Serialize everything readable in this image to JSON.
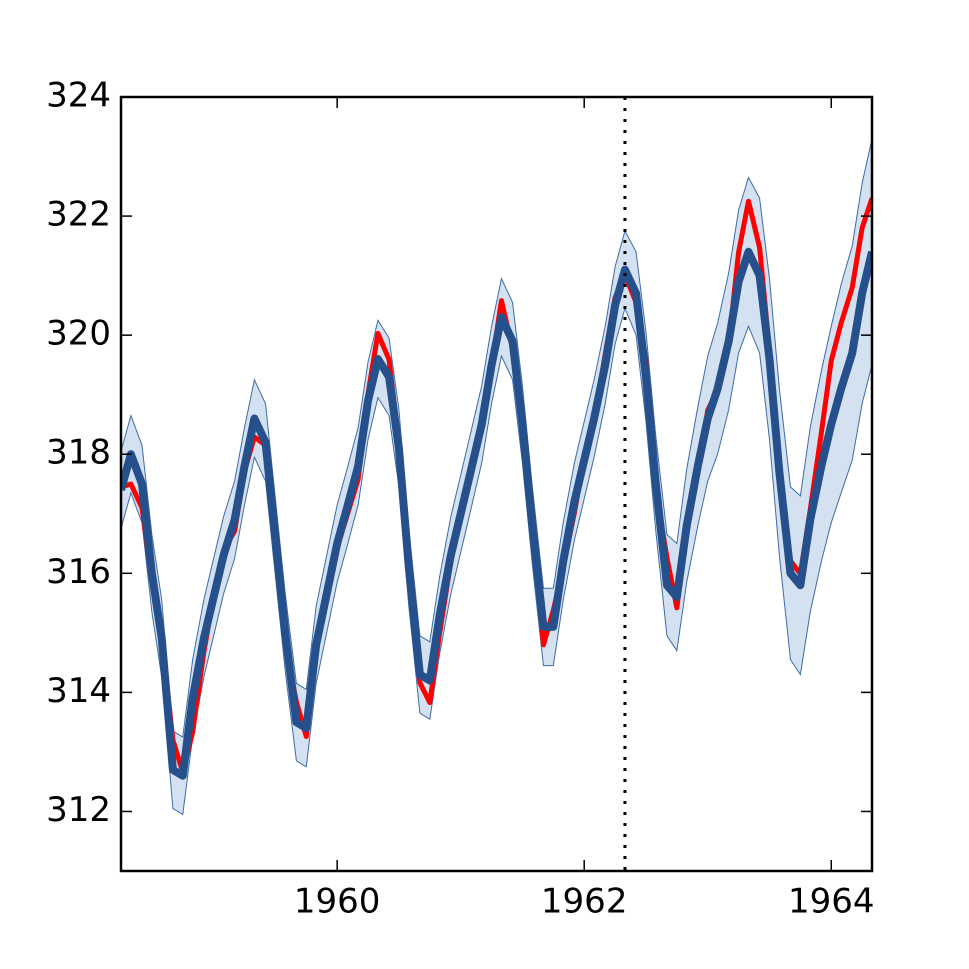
{
  "chart_data": {
    "type": "line",
    "x": [
      1958.25,
      1958.33,
      1958.42,
      1958.5,
      1958.58,
      1958.67,
      1958.75,
      1958.83,
      1958.92,
      1959,
      1959.08,
      1959.17,
      1959.25,
      1959.33,
      1959.42,
      1959.5,
      1959.58,
      1959.67,
      1959.75,
      1959.83,
      1959.92,
      1960,
      1960.08,
      1960.17,
      1960.25,
      1960.33,
      1960.42,
      1960.5,
      1960.58,
      1960.67,
      1960.75,
      1960.83,
      1960.92,
      1961,
      1961.08,
      1961.17,
      1961.25,
      1961.33,
      1961.42,
      1961.5,
      1961.58,
      1961.67,
      1961.75,
      1961.83,
      1961.92,
      1962,
      1962.08,
      1962.17,
      1962.25,
      1962.33,
      1962.42,
      1962.5,
      1962.58,
      1962.67,
      1962.75,
      1962.83,
      1962.92,
      1963,
      1963.08,
      1963.17,
      1963.25,
      1963.33,
      1963.42,
      1963.5,
      1963.58,
      1963.67,
      1963.75,
      1963.83,
      1963.92,
      1964,
      1964.08,
      1964.17,
      1964.25,
      1964.33
    ],
    "series": [
      {
        "color": "#ff0000",
        "values": [
          317.45,
          317.5,
          317.1,
          315.86,
          314.93,
          313.2,
          312.66,
          313.33,
          314.67,
          315.62,
          316.38,
          316.71,
          317.72,
          318.29,
          318.15,
          316.54,
          314.8,
          313.84,
          313.26,
          314.8,
          315.58,
          316.43,
          316.97,
          317.58,
          319.02,
          320.03,
          319.59,
          318.18,
          315.91,
          314.16,
          313.83,
          315.0,
          316.19,
          316.93,
          317.7,
          318.54,
          319.48,
          320.58,
          319.77,
          318.57,
          316.79,
          314.8,
          315.38,
          316.1,
          317.01,
          317.94,
          318.56,
          319.68,
          320.63,
          321.01,
          320.55,
          319.58,
          317.4,
          316.26,
          315.42,
          316.69,
          317.69,
          318.74,
          319.08,
          319.86,
          321.39,
          322.25,
          321.47,
          319.74,
          317.77,
          316.21,
          315.99,
          317.07,
          318.36,
          319.57,
          320.2,
          320.8,
          321.8,
          322.3
        ]
      },
      {
        "color": "#26508c",
        "band_color": "#d3e1f1",
        "band_edge": "#3e6ca8",
        "values": [
          317.4,
          318.0,
          317.5,
          316.0,
          314.9,
          312.7,
          312.6,
          313.9,
          314.9,
          315.6,
          316.3,
          316.9,
          317.8,
          318.6,
          318.2,
          316.6,
          315.0,
          313.5,
          313.4,
          314.8,
          315.7,
          316.5,
          317.1,
          317.8,
          318.9,
          319.6,
          319.3,
          318.1,
          316.1,
          314.3,
          314.2,
          315.3,
          316.3,
          317.0,
          317.7,
          318.5,
          319.5,
          320.3,
          319.9,
          318.5,
          316.8,
          315.1,
          315.1,
          316.2,
          317.2,
          317.9,
          318.6,
          319.5,
          320.5,
          321.1,
          320.7,
          319.3,
          317.5,
          315.8,
          315.6,
          316.8,
          317.8,
          318.6,
          319.1,
          319.9,
          320.9,
          321.4,
          321.0,
          319.6,
          317.7,
          316.0,
          315.8,
          316.9,
          317.8,
          318.5,
          319.1,
          319.7,
          320.7,
          321.4
        ],
        "errors": [
          0.65,
          0.65,
          0.65,
          0.65,
          0.65,
          0.65,
          0.65,
          0.65,
          0.65,
          0.65,
          0.65,
          0.65,
          0.65,
          0.65,
          0.65,
          0.65,
          0.65,
          0.65,
          0.65,
          0.65,
          0.65,
          0.65,
          0.65,
          0.65,
          0.65,
          0.65,
          0.65,
          0.65,
          0.65,
          0.65,
          0.65,
          0.65,
          0.65,
          0.65,
          0.65,
          0.65,
          0.65,
          0.65,
          0.65,
          0.65,
          0.65,
          0.65,
          0.65,
          0.65,
          0.65,
          0.65,
          0.65,
          0.65,
          0.65,
          0.65,
          0.7,
          0.75,
          0.8,
          0.85,
          0.9,
          0.95,
          1.0,
          1.05,
          1.1,
          1.15,
          1.2,
          1.25,
          1.3,
          1.35,
          1.4,
          1.45,
          1.5,
          1.55,
          1.6,
          1.65,
          1.75,
          1.8,
          1.85,
          1.9
        ]
      }
    ],
    "vline": 1962.33,
    "xlim": [
      1958.25,
      1964.33
    ],
    "xticks": [
      1960,
      1962,
      1964
    ],
    "ylim": [
      311,
      324
    ],
    "yticks": [
      312,
      314,
      316,
      318,
      320,
      322,
      324
    ]
  }
}
